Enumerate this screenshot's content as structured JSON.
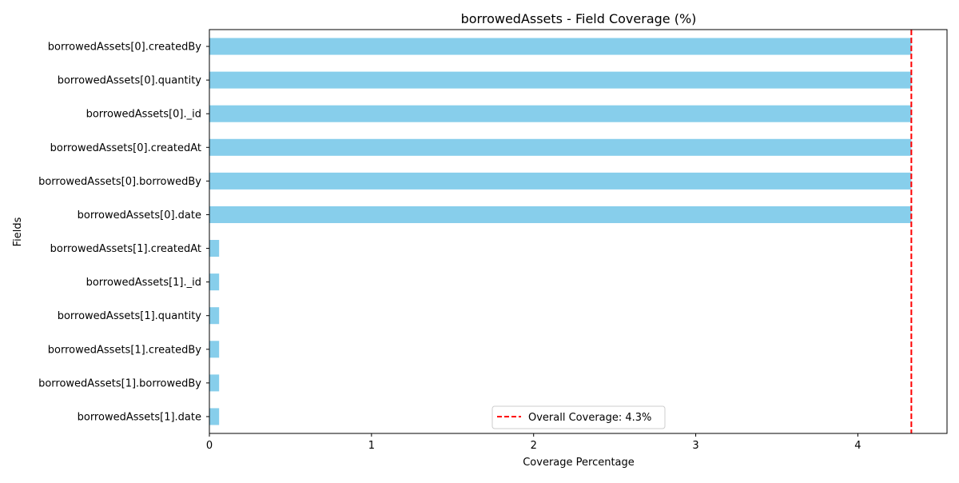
{
  "chart_data": {
    "type": "bar",
    "orientation": "horizontal",
    "title": "borrowedAssets - Field Coverage (%)",
    "xlabel": "Coverage Percentage",
    "ylabel": "Fields",
    "xlim": [
      0,
      4.55
    ],
    "xticks": [
      "0",
      "1",
      "2",
      "3",
      "4"
    ],
    "grid": false,
    "categories": [
      "borrowedAssets[0].createdBy",
      "borrowedAssets[0].quantity",
      "borrowedAssets[0]._id",
      "borrowedAssets[0].createdAt",
      "borrowedAssets[0].borrowedBy",
      "borrowedAssets[0].date",
      "borrowedAssets[1].createdAt",
      "borrowedAssets[1]._id",
      "borrowedAssets[1].quantity",
      "borrowedAssets[1].createdBy",
      "borrowedAssets[1].borrowedBy",
      "borrowedAssets[1].date"
    ],
    "values": [
      4.33,
      4.33,
      4.33,
      4.33,
      4.33,
      4.33,
      0.06,
      0.06,
      0.06,
      0.06,
      0.06,
      0.06
    ],
    "bar_color": "#87ceeb",
    "reference_line": {
      "value": 4.33,
      "label": "Overall Coverage: 4.3%",
      "color": "#ff0000",
      "style": "dashed"
    },
    "legend_position": "bottom-center"
  }
}
